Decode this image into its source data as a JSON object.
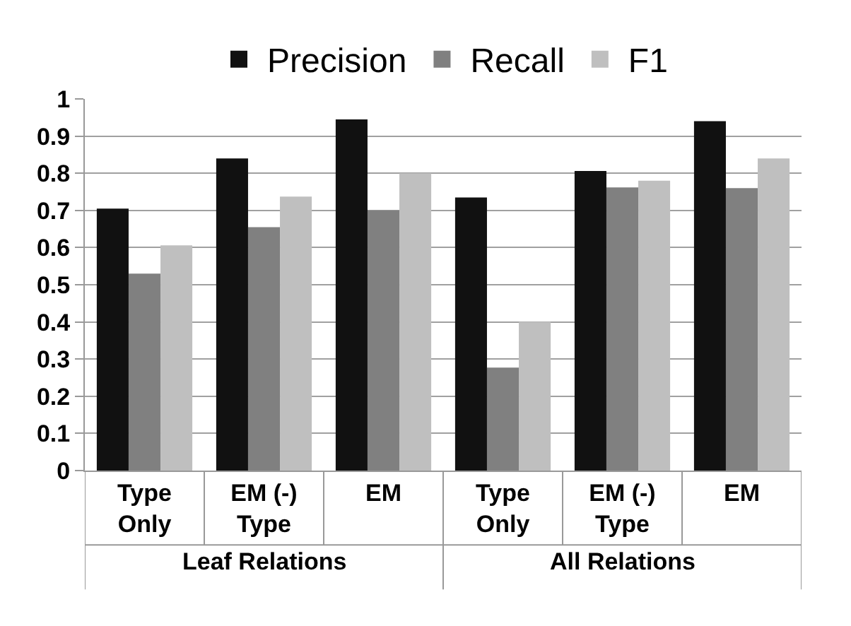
{
  "chart_data": {
    "type": "bar",
    "categories": [
      "Type Only",
      "EM (-) Type",
      "EM",
      "Type Only",
      "EM (-) Type",
      "EM"
    ],
    "series": [
      {
        "name": "Precision",
        "color": "#111111",
        "values": [
          0.705,
          0.84,
          0.945,
          0.735,
          0.806,
          0.94
        ]
      },
      {
        "name": "Recall",
        "color": "#808080",
        "values": [
          0.53,
          0.655,
          0.7,
          0.277,
          0.762,
          0.76
        ]
      },
      {
        "name": "F1",
        "color": "#bfbfbf",
        "values": [
          0.606,
          0.737,
          0.8,
          0.4,
          0.78,
          0.84
        ]
      }
    ],
    "annotations": [
      "Leaf Relations",
      "All Relations"
    ],
    "ylim": [
      0,
      1
    ],
    "yticks": [
      0,
      {
        "value": 0.1,
        "label": "0.1"
      },
      {
        "value": 0.2,
        "label": "0.2"
      },
      {
        "value": 0.3,
        "label": "0.3"
      },
      {
        "value": 0.4,
        "label": "0.4"
      },
      {
        "value": 0.5,
        "label": "0.5"
      },
      {
        "value": 0.6,
        "label": "0.6"
      },
      {
        "value": 0.7,
        "label": "0.7"
      },
      {
        "value": 0.8,
        "label": "0.8"
      },
      {
        "value": 0.9,
        "label": "0.9"
      },
      1
    ],
    "grid": "y",
    "legend": "top"
  }
}
